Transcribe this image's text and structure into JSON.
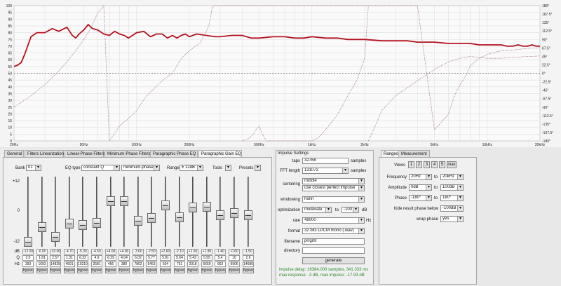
{
  "chart_data": {
    "type": "line",
    "x_tick_labels": [
      "20Hz",
      "50Hz",
      "100Hz",
      "200Hz",
      "500Hz",
      "1kHz",
      "2kHz",
      "5kHz",
      "10kHz",
      "20kHz"
    ],
    "y_left_labels": [
      "100",
      "95",
      "90",
      "85",
      "80",
      "75",
      "70",
      "65",
      "60",
      "55",
      "50",
      "45",
      "40",
      "35",
      "30",
      "25",
      "20",
      "15",
      "10",
      "5",
      "0"
    ],
    "y_right_labels": [
      "180°",
      "167.5°",
      "135°",
      "112.5°",
      "90°",
      "67.5°",
      "45°",
      "22.5°",
      "0°",
      "-22.5°",
      "-45°",
      "-67.5°",
      "-90°",
      "-112.5°",
      "-135°",
      "-167.5°",
      "-180°"
    ],
    "ylim": [
      0,
      100
    ],
    "phase_lim": [
      -180,
      180
    ],
    "grid": true,
    "reference_line": 50,
    "series": [
      {
        "color": "#b3121f",
        "x": [
          20,
          21,
          22,
          23,
          25,
          27,
          30,
          33,
          36,
          40,
          43,
          45,
          47,
          50,
          53,
          56,
          60,
          65,
          70,
          75,
          80,
          85,
          90,
          100,
          110,
          120,
          130,
          140,
          150,
          160,
          170,
          180,
          190,
          200,
          220,
          250,
          280,
          300,
          350,
          400,
          450,
          500,
          600,
          700,
          800,
          900,
          1000,
          1200,
          1400,
          1600,
          1800,
          2000,
          2500,
          3000,
          3500,
          4000,
          5000,
          6000,
          7000,
          8000,
          9000,
          10000,
          11000,
          12000,
          13000,
          14000,
          15000,
          16000,
          17000,
          18000,
          19000,
          20000
        ],
        "y": [
          55,
          56,
          58,
          64,
          77,
          80,
          80,
          83,
          81,
          84,
          78,
          76,
          79,
          82,
          86,
          83,
          82,
          79,
          78,
          81,
          79,
          78,
          76,
          80,
          81,
          77,
          79,
          79,
          76,
          78,
          76,
          78,
          79,
          77,
          79,
          78,
          77,
          77,
          78,
          78,
          76,
          76,
          77,
          77,
          76,
          76,
          77,
          76,
          76,
          75,
          75,
          75,
          74,
          74,
          74,
          73,
          73,
          72,
          72,
          72,
          71,
          71,
          71,
          71,
          70,
          70,
          71,
          70,
          70,
          71,
          70,
          70
        ]
      },
      {
        "color": "#a06a88",
        "axis": "phase",
        "x": [
          20,
          25,
          30,
          35,
          40,
          45,
          50,
          55,
          60,
          65,
          70,
          75,
          80,
          90,
          100,
          110,
          120,
          140,
          160,
          180,
          200,
          230,
          250,
          260,
          270,
          280,
          300,
          350,
          400,
          450,
          500,
          550,
          600,
          700,
          800,
          900,
          1000,
          1200,
          1400,
          1600,
          1800,
          2000,
          2200,
          2400,
          2500,
          3000,
          3500,
          4000,
          5000,
          6000,
          6500,
          7000,
          7500,
          8000,
          9000,
          10000,
          12000,
          14000,
          16000,
          18000,
          20000
        ],
        "y": [
          -90,
          -60,
          -30,
          0,
          30,
          60,
          90,
          120,
          160,
          180,
          -180,
          -160,
          -140,
          -120,
          -100,
          -70,
          -50,
          -20,
          0,
          40,
          60,
          80,
          112,
          130,
          175,
          180,
          180,
          180,
          180,
          180,
          180,
          180,
          180,
          180,
          180,
          180,
          180,
          180,
          180,
          180,
          180,
          180,
          180,
          180,
          180,
          180,
          180,
          180,
          -150,
          -110,
          -60,
          -30,
          -10,
          20,
          40,
          50,
          60,
          62,
          65,
          67,
          68
        ]
      },
      {
        "color": "#a06a88",
        "axis": "phase",
        "x": [
          400,
          430,
          460,
          480,
          500,
          520,
          550,
          600,
          650,
          700,
          750,
          800,
          900,
          1000,
          1100,
          1200,
          1400,
          1600,
          1800,
          2000,
          2100
        ],
        "y": [
          -180,
          -175,
          -165,
          -150,
          -140,
          -160,
          -180,
          -180,
          -180,
          -180,
          -180,
          -180,
          -180,
          -180,
          -170,
          -150,
          -110,
          -60,
          -20,
          40,
          180
        ]
      },
      {
        "color": "#a06a88",
        "axis": "phase",
        "x": [
          2100,
          2300,
          2500,
          3000,
          4000,
          5000,
          6000,
          7000,
          8000,
          9000,
          10000,
          12000,
          14000,
          16000,
          18000,
          20000
        ],
        "y": [
          -180,
          -140,
          -100,
          -60,
          -20,
          10,
          30,
          40,
          45,
          42,
          40,
          40,
          42,
          44,
          45,
          46
        ]
      }
    ]
  },
  "tabs_left": [
    "General",
    "Filters Linearization",
    "Linear-Phase Filters",
    "Minimum-Phase Filters",
    "Paragraphic Phase EQ",
    "Paragraphic Gain EQ"
  ],
  "eq": {
    "bank_label": "Bank",
    "bank_value": "01",
    "type_label": "EQ type",
    "type_value": "constant Q",
    "phase_value": "minimum-phase",
    "range_label": "Range",
    "range_value": "± 12dB",
    "tools_label": "Tools",
    "presets_label": "Presets",
    "scale_top": "+12",
    "scale_mid": "0",
    "scale_bot": "-12",
    "row_labels": [
      "dB",
      "Q",
      "Hz"
    ],
    "bypass_label": "bypass",
    "bands": [
      {
        "db": "-12.00",
        "q": "2.0",
        "hz": "393",
        "level": 0
      },
      {
        "db": "-6.00",
        "q": "1.81",
        "hz": "1693",
        "level": 0.25
      },
      {
        "db": "-10.00",
        "q": "2.57",
        "hz": "14828",
        "level": 0.08
      },
      {
        "db": "-4.70",
        "q": "1.31",
        "hz": "4591",
        "level": 0.3
      },
      {
        "db": "-5.30",
        "q": "6.32",
        "hz": "19210",
        "level": 0.28
      },
      {
        "db": "-4.50",
        "q": "4.9",
        "hz": "2581",
        "level": 0.31
      },
      {
        "db": "+4.00",
        "q": "6.29",
        "hz": "456",
        "level": 0.67
      },
      {
        "db": "+4.00",
        "q": "4.04",
        "hz": "380",
        "level": 0.67
      },
      {
        "db": "-3.60",
        "q": "6.02",
        "hz": "7802",
        "level": 0.35
      },
      {
        "db": "-2.50",
        "q": "5.77",
        "hz": "5453",
        "level": 0.4
      },
      {
        "db": "+2.60",
        "q": "5.81",
        "hz": "504",
        "level": 0.61
      },
      {
        "db": "-2.10",
        "q": "5.64",
        "hz": "751",
        "level": 0.41
      },
      {
        "db": "+1.60",
        "q": "5.43",
        "hz": "2018",
        "level": 0.57
      },
      {
        "db": "+1.80",
        "q": "5.55",
        "hz": "6659",
        "level": 0.58
      },
      {
        "db": "-1.40",
        "q": "5.4",
        "hz": "663",
        "level": 0.44
      },
      {
        "db": "-0.60",
        "q": "10",
        "hz": "9906",
        "level": 0.48
      },
      {
        "db": "-1.50",
        "q": "2.6",
        "hz": "14680",
        "level": 0.44
      }
    ]
  },
  "impulse": {
    "title": "Impulse Settings",
    "taps_label": "taps",
    "taps_value": "32768",
    "taps_unit": "samples",
    "fft_label": "FFT length",
    "fft_value": "131072",
    "fft_unit": "samples",
    "centering_label": "centering",
    "centering_value": "middle",
    "centering_value2": "use closest perfect impulse",
    "windowing_label": "windowing",
    "windowing_value": "hann",
    "optimization_label": "optimization",
    "optimization_value": "moderate",
    "opt_to": "to",
    "opt_db_value": "-100",
    "opt_unit": "dB",
    "rate_label": "rate",
    "rate_value": "48000",
    "rate_unit": "Hz",
    "format_label": "format",
    "format_value": "32 bits LPCM mono (.wav)",
    "filename_label": "filename",
    "filename_value": "prrgmt",
    "directory_label": "directory",
    "directory_value": "",
    "generate_label": "generate",
    "info1": "impulse delay: 16384.000 samples, 341.333 ms",
    "info2": "max response: -3 dB, max impulse: -17.93 dB"
  },
  "ranges": {
    "tabs": [
      "Ranges",
      "Measurement"
    ],
    "views_label": "Views",
    "views": [
      "1",
      "2",
      "3",
      "4",
      "5",
      "max"
    ],
    "frequency_label": "Frequency",
    "freq_from": "20Hz",
    "freq_to": "20kHz",
    "amplitude_label": "Amplitude",
    "amp_from": "0dB",
    "amp_to": "100dB",
    "phase_label": "Phase",
    "phase_from": "-180°",
    "phase_to": "180°",
    "to_label": "to",
    "hide_label": "hide result phase below",
    "hide_value": "-100dB",
    "wrap_label": "wrap phase",
    "wrap_value": "yes"
  }
}
